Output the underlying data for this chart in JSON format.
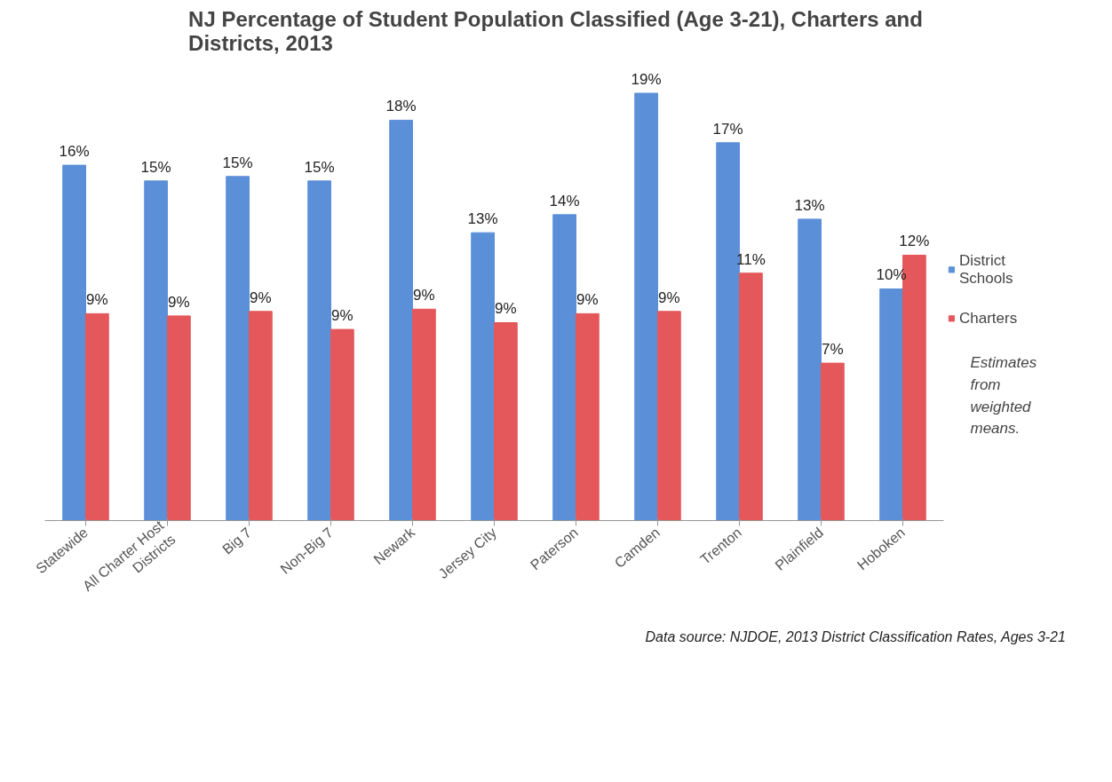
{
  "chart_data": {
    "type": "bar",
    "title": "NJ Percentage of Student Population Classified (Age 3-21), Charters and Districts, 2013",
    "categories": [
      "Statewide",
      "All Charter Host Districts",
      "Big 7",
      "Non-Big 7",
      "Newark",
      "Jersey City",
      "Paterson",
      "Camden",
      "Trenton",
      "Plainfield",
      "Hoboken"
    ],
    "series": [
      {
        "name": "District Schools",
        "color": "#5b8fd8",
        "values": [
          15.8,
          15.1,
          15.3,
          15.1,
          17.8,
          12.8,
          13.6,
          19.0,
          16.8,
          13.4,
          10.3
        ],
        "value_labels": [
          "16%",
          "15%",
          "15%",
          "15%",
          "18%",
          "13%",
          "14%",
          "19%",
          "17%",
          "13%",
          "10%"
        ]
      },
      {
        "name": "Charters",
        "color": "#e4585b",
        "values": [
          9.2,
          9.1,
          9.3,
          8.5,
          9.4,
          8.8,
          9.2,
          9.3,
          11.0,
          7.0,
          11.8
        ],
        "value_labels": [
          "9%",
          "9%",
          "9%",
          "9%",
          "9%",
          "9%",
          "9%",
          "9%",
          "11%",
          "7%",
          "12%"
        ]
      }
    ],
    "legend": "right",
    "grid": false,
    "annotations": [
      "Estimates from weighted means.",
      "Data source: NJDOE, 2013 District Classification Rates, Ages 3-21"
    ]
  }
}
